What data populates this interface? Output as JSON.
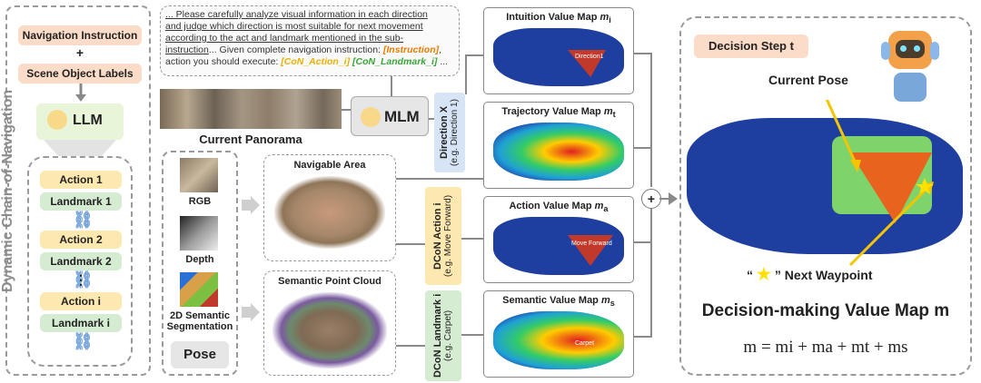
{
  "left_panel": {
    "side_title": "Dynamic Chain-of-Navigation",
    "nav_instruction": "Navigation Instruction",
    "plus": "+",
    "scene_labels": "Scene Object Labels",
    "llm": "LLM",
    "actions": [
      {
        "action": "Action 1",
        "landmark": "Landmark 1"
      },
      {
        "action": "Action 2",
        "landmark": "Landmark 2"
      },
      {
        "action": "Action i",
        "landmark": "Landmark i"
      }
    ],
    "ellipsis": "⋮"
  },
  "instruction_text": {
    "line1": "... Please carefully analyze visual information in each direction",
    "line2": "and judge which direction is most suitable for next movement",
    "line3": "according to the act and landmark mentioned in the sub-",
    "line4a": "instruction",
    "line4b": "... Given complete navigation instruction: ",
    "line4c": "[Instruction]",
    "line4d": ",",
    "line5a": "action you should execute: ",
    "line5b": "[CoN_Action_i]",
    "line5c": "[CoN_Landmark_i]",
    "line5d": " ..."
  },
  "panorama_label": "Current Panorama",
  "mlm_label": "MLM",
  "inputs": {
    "rgb": "RGB",
    "depth": "Depth",
    "seg": "2D Semantic Segmentation",
    "pose": "Pose"
  },
  "middle": {
    "navigable": "Navigable Area",
    "point_cloud": "Semantic Point Cloud"
  },
  "directions": {
    "dir_title": "Direction X",
    "dir_sub": "(e.g. Direction 1)",
    "act_title": "DCoN Action i",
    "act_sub": "(e.g. Move Forward)",
    "lm_title": "DCoN Landmark i",
    "lm_sub": "(e.g. Carpet)"
  },
  "value_maps": [
    {
      "title": "Intuition Value Map",
      "sym": "m",
      "sub": "i",
      "tag": "Direction1"
    },
    {
      "title": "Trajectory Value Map",
      "sym": "m",
      "sub": "t",
      "tag": ""
    },
    {
      "title": "Action Value Map",
      "sym": "m",
      "sub": "a",
      "tag": "Move Forward"
    },
    {
      "title": "Semantic Value Map",
      "sym": "m",
      "sub": "s",
      "tag": "Carpet"
    }
  ],
  "plus_circle": "+",
  "decision": {
    "step": "Decision Step t",
    "current_pose": "Current Pose",
    "next_wp_open": "“",
    "next_wp_close": "” Next Waypoint",
    "title": "Decision-making Value Map m",
    "formula": "m = mi + ma + mt + ms"
  },
  "colors": {
    "peach": "#fbdcc8",
    "yellow": "#fde9b0",
    "green": "#d6ecd2",
    "map_blue": "#1f3fa0",
    "arrow_yellow": "#f5c400"
  }
}
